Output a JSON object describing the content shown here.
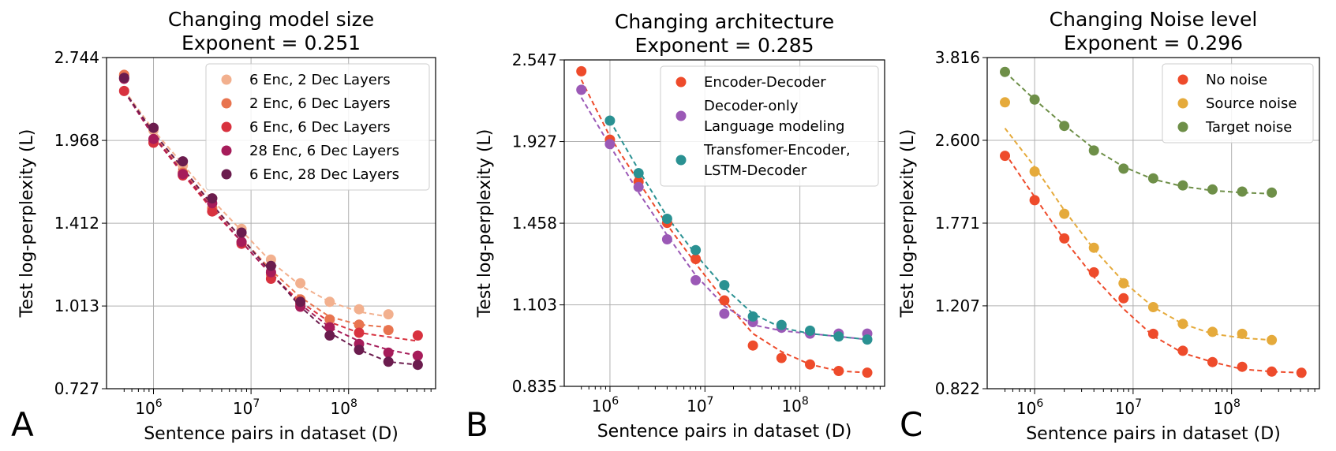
{
  "chart_data": [
    {
      "panel": "A",
      "type": "scatter",
      "title": "Changing model size",
      "subtitle": "Exponent = 0.251",
      "xlabel": "Sentence pairs in dataset (D)",
      "ylabel": "Test log-perplexity (L)",
      "xscale": "log",
      "yscale": "log",
      "xlim": [
        330000,
        780000000
      ],
      "ylim": [
        0.727,
        2.744
      ],
      "yticks": [
        "0.727",
        "1.013",
        "1.412",
        "1.968",
        "2.744"
      ],
      "xticks": [
        {
          "base": "10",
          "exp": "6",
          "value": 1000000
        },
        {
          "base": "10",
          "exp": "7",
          "value": 10000000
        },
        {
          "base": "10",
          "exp": "8",
          "value": 100000000
        }
      ],
      "grid": true,
      "legend_position": "top-right",
      "series": [
        {
          "name": "6 Enc, 2 Dec Layers",
          "color": "#F2B08E",
          "x": [
            500000,
            1000000,
            2000000,
            4000000,
            8000000,
            16000000,
            32000000,
            64000000,
            128000000,
            256000000
          ],
          "y": [
            2.55,
            2.05,
            1.78,
            1.56,
            1.38,
            1.22,
            1.11,
            1.03,
            1.0,
            0.98
          ],
          "fit": [
            [
              500000,
              2.41
            ],
            [
              1000000,
              2.05
            ],
            [
              2000000,
              1.79
            ],
            [
              4000000,
              1.55
            ],
            [
              8000000,
              1.37
            ],
            [
              16000000,
              1.21
            ],
            [
              32000000,
              1.1
            ],
            [
              64000000,
              1.03
            ],
            [
              128000000,
              0.99
            ],
            [
              256000000,
              0.97
            ]
          ]
        },
        {
          "name": "2 Enc, 6 Dec Layers",
          "color": "#E8744F",
          "x": [
            500000,
            1000000,
            2000000,
            4000000,
            8000000,
            16000000,
            32000000,
            64000000,
            128000000,
            256000000
          ],
          "y": [
            2.56,
            1.97,
            1.73,
            1.5,
            1.31,
            1.15,
            1.04,
            0.96,
            0.94,
            0.92
          ],
          "fit": [
            [
              500000,
              2.4
            ],
            [
              1000000,
              2.01
            ],
            [
              2000000,
              1.74
            ],
            [
              4000000,
              1.51
            ],
            [
              8000000,
              1.33
            ],
            [
              16000000,
              1.17
            ],
            [
              32000000,
              1.05
            ],
            [
              64000000,
              0.97
            ],
            [
              128000000,
              0.94
            ],
            [
              256000000,
              0.93
            ]
          ]
        },
        {
          "name": "6 Enc, 6 Dec Layers",
          "color": "#D8323F",
          "x": [
            500000,
            1000000,
            2000000,
            4000000,
            8000000,
            16000000,
            32000000,
            64000000,
            128000000,
            512000000
          ],
          "y": [
            2.4,
            1.95,
            1.71,
            1.48,
            1.3,
            1.13,
            1.02,
            0.93,
            0.91,
            0.9
          ],
          "fit": [
            [
              500000,
              2.4
            ],
            [
              1000000,
              2.0
            ],
            [
              2000000,
              1.72
            ],
            [
              4000000,
              1.49
            ],
            [
              8000000,
              1.31
            ],
            [
              16000000,
              1.15
            ],
            [
              32000000,
              1.03
            ],
            [
              64000000,
              0.95
            ],
            [
              128000000,
              0.91
            ],
            [
              512000000,
              0.88
            ]
          ]
        },
        {
          "name": "28 Enc, 6 Dec Layers",
          "color": "#A61C5A",
          "x": [
            500000,
            1000000,
            2000000,
            4000000,
            8000000,
            16000000,
            32000000,
            64000000,
            128000000,
            256000000,
            512000000
          ],
          "y": [
            2.52,
            1.98,
            1.72,
            1.53,
            1.31,
            1.16,
            1.01,
            0.93,
            0.87,
            0.84,
            0.83
          ],
          "fit": [
            [
              500000,
              2.4
            ],
            [
              1000000,
              2.0
            ],
            [
              2000000,
              1.73
            ],
            [
              4000000,
              1.5
            ],
            [
              8000000,
              1.31
            ],
            [
              16000000,
              1.15
            ],
            [
              32000000,
              1.02
            ],
            [
              64000000,
              0.93
            ],
            [
              128000000,
              0.88
            ],
            [
              256000000,
              0.85
            ],
            [
              512000000,
              0.83
            ]
          ]
        },
        {
          "name": "6 Enc, 28 Dec Layers",
          "color": "#6B1C4E",
          "x": [
            500000,
            1000000,
            2000000,
            4000000,
            8000000,
            16000000,
            32000000,
            64000000,
            128000000,
            256000000,
            512000000
          ],
          "y": [
            2.53,
            2.07,
            1.81,
            1.56,
            1.36,
            1.19,
            1.03,
            0.9,
            0.85,
            0.81,
            0.8
          ],
          "fit": [
            [
              500000,
              2.4
            ],
            [
              1000000,
              2.03
            ],
            [
              2000000,
              1.76
            ],
            [
              4000000,
              1.52
            ],
            [
              8000000,
              1.33
            ],
            [
              16000000,
              1.16
            ],
            [
              32000000,
              1.01
            ],
            [
              64000000,
              0.91
            ],
            [
              128000000,
              0.85
            ],
            [
              256000000,
              0.81
            ],
            [
              512000000,
              0.8
            ]
          ]
        }
      ],
      "letter": "A"
    },
    {
      "panel": "B",
      "type": "scatter",
      "title": "Changing architecture",
      "subtitle": "Exponent = 0.285",
      "xlabel": "Sentence pairs in dataset (D)",
      "ylabel": "Test log-perplexity (L)",
      "xscale": "log",
      "yscale": "log",
      "xlim": [
        330000,
        780000000
      ],
      "ylim": [
        0.835,
        2.547
      ],
      "yticks": [
        "0.835",
        "1.103",
        "1.458",
        "1.927",
        "2.547"
      ],
      "xticks": [
        {
          "base": "10",
          "exp": "6",
          "value": 1000000
        },
        {
          "base": "10",
          "exp": "7",
          "value": 10000000
        },
        {
          "base": "10",
          "exp": "8",
          "value": 100000000
        }
      ],
      "grid": true,
      "legend_position": "top-right",
      "series": [
        {
          "name": "Encoder-Decoder",
          "color": "#EE4B2B",
          "x": [
            500000,
            1000000,
            2000000,
            4000000,
            8000000,
            16000000,
            32000000,
            64000000,
            128000000,
            256000000,
            512000000
          ],
          "y": [
            2.45,
            1.94,
            1.68,
            1.46,
            1.29,
            1.12,
            0.96,
            0.92,
            0.9,
            0.88,
            0.875
          ],
          "fit": [
            [
              500000,
              2.38
            ],
            [
              1000000,
              1.96
            ],
            [
              2000000,
              1.68
            ],
            [
              4000000,
              1.45
            ],
            [
              8000000,
              1.27
            ],
            [
              16000000,
              1.12
            ],
            [
              32000000,
              1.0
            ],
            [
              64000000,
              0.94
            ],
            [
              128000000,
              0.9
            ],
            [
              256000000,
              0.88
            ],
            [
              512000000,
              0.875
            ]
          ]
        },
        {
          "name": "Decoder-only\nLanguage modeling",
          "color": "#9B59B6",
          "x": [
            500000,
            1000000,
            2000000,
            4000000,
            8000000,
            16000000,
            32000000,
            64000000,
            128000000,
            256000000,
            512000000
          ],
          "y": [
            2.3,
            1.91,
            1.65,
            1.38,
            1.2,
            1.07,
            1.04,
            1.02,
            1.0,
            1.0,
            1.0
          ],
          "fit": [
            [
              500000,
              2.24
            ],
            [
              1000000,
              1.9
            ],
            [
              2000000,
              1.62
            ],
            [
              4000000,
              1.4
            ],
            [
              8000000,
              1.22
            ],
            [
              16000000,
              1.1
            ],
            [
              32000000,
              1.03
            ],
            [
              64000000,
              1.01
            ],
            [
              128000000,
              1.0
            ],
            [
              256000000,
              0.99
            ],
            [
              512000000,
              0.98
            ]
          ]
        },
        {
          "name": "Transfomer-Encoder,\nLSTM-Decoder",
          "color": "#2A9192",
          "x": [
            1000000,
            2000000,
            4000000,
            8000000,
            16000000,
            32000000,
            64000000,
            128000000,
            256000000,
            512000000
          ],
          "y": [
            2.07,
            1.73,
            1.48,
            1.33,
            1.18,
            1.06,
            1.03,
            1.01,
            0.99,
            0.98
          ],
          "fit": [
            [
              1000000,
              2.07
            ],
            [
              2000000,
              1.75
            ],
            [
              4000000,
              1.49
            ],
            [
              8000000,
              1.31
            ],
            [
              16000000,
              1.17
            ],
            [
              32000000,
              1.07
            ],
            [
              64000000,
              1.02
            ],
            [
              128000000,
              1.0
            ],
            [
              256000000,
              0.99
            ],
            [
              512000000,
              0.98
            ]
          ]
        }
      ],
      "letter": "B"
    },
    {
      "panel": "C",
      "type": "scatter",
      "title": "Changing Noise level",
      "subtitle": "Exponent = 0.296",
      "xlabel": "Sentence pairs in dataset (D)",
      "ylabel": "Test log-perplexity (L)",
      "xscale": "log",
      "yscale": "log",
      "xlim": [
        330000,
        780000000
      ],
      "ylim": [
        0.822,
        3.816
      ],
      "yticks": [
        "0.822",
        "1.207",
        "1.771",
        "2.600",
        "3.816"
      ],
      "xticks": [
        {
          "base": "10",
          "exp": "6",
          "value": 1000000
        },
        {
          "base": "10",
          "exp": "7",
          "value": 10000000
        },
        {
          "base": "10",
          "exp": "8",
          "value": 100000000
        }
      ],
      "grid": true,
      "legend_position": "top-right",
      "series": [
        {
          "name": "No noise",
          "color": "#EE4B2B",
          "x": [
            500000,
            1000000,
            2000000,
            4000000,
            8000000,
            16000000,
            32000000,
            64000000,
            128000000,
            256000000,
            512000000
          ],
          "y": [
            2.42,
            1.97,
            1.65,
            1.41,
            1.25,
            1.06,
            0.98,
            0.93,
            0.91,
            0.89,
            0.885
          ],
          "fit": [
            [
              500000,
              2.45
            ],
            [
              1000000,
              2.0
            ],
            [
              2000000,
              1.64
            ],
            [
              4000000,
              1.38
            ],
            [
              8000000,
              1.19
            ],
            [
              16000000,
              1.05
            ],
            [
              32000000,
              0.97
            ],
            [
              64000000,
              0.93
            ],
            [
              128000000,
              0.9
            ],
            [
              256000000,
              0.89
            ],
            [
              512000000,
              0.885
            ]
          ]
        },
        {
          "name": "Source noise",
          "color": "#E5AA3B",
          "x": [
            500000,
            1000000,
            2000000,
            4000000,
            8000000,
            16000000,
            32000000,
            64000000,
            128000000,
            256000000
          ],
          "y": [
            3.1,
            2.25,
            1.85,
            1.58,
            1.34,
            1.2,
            1.11,
            1.07,
            1.06,
            1.03
          ],
          "fit": [
            [
              500000,
              2.75
            ],
            [
              1000000,
              2.3
            ],
            [
              2000000,
              1.88
            ],
            [
              4000000,
              1.57
            ],
            [
              8000000,
              1.35
            ],
            [
              16000000,
              1.2
            ],
            [
              32000000,
              1.11
            ],
            [
              64000000,
              1.06
            ],
            [
              128000000,
              1.04
            ],
            [
              256000000,
              1.03
            ]
          ]
        },
        {
          "name": "Target noise",
          "color": "#6E8F48",
          "x": [
            500000,
            1000000,
            2000000,
            4000000,
            8000000,
            16000000,
            32000000,
            64000000,
            128000000,
            256000000
          ],
          "y": [
            3.57,
            3.14,
            2.78,
            2.48,
            2.28,
            2.18,
            2.11,
            2.07,
            2.05,
            2.04
          ],
          "fit": [
            [
              500000,
              3.57
            ],
            [
              1000000,
              3.14
            ],
            [
              2000000,
              2.79
            ],
            [
              4000000,
              2.5
            ],
            [
              8000000,
              2.3
            ],
            [
              16000000,
              2.17
            ],
            [
              32000000,
              2.1
            ],
            [
              64000000,
              2.06
            ],
            [
              128000000,
              2.04
            ],
            [
              256000000,
              2.03
            ]
          ]
        }
      ],
      "letter": "C"
    }
  ]
}
